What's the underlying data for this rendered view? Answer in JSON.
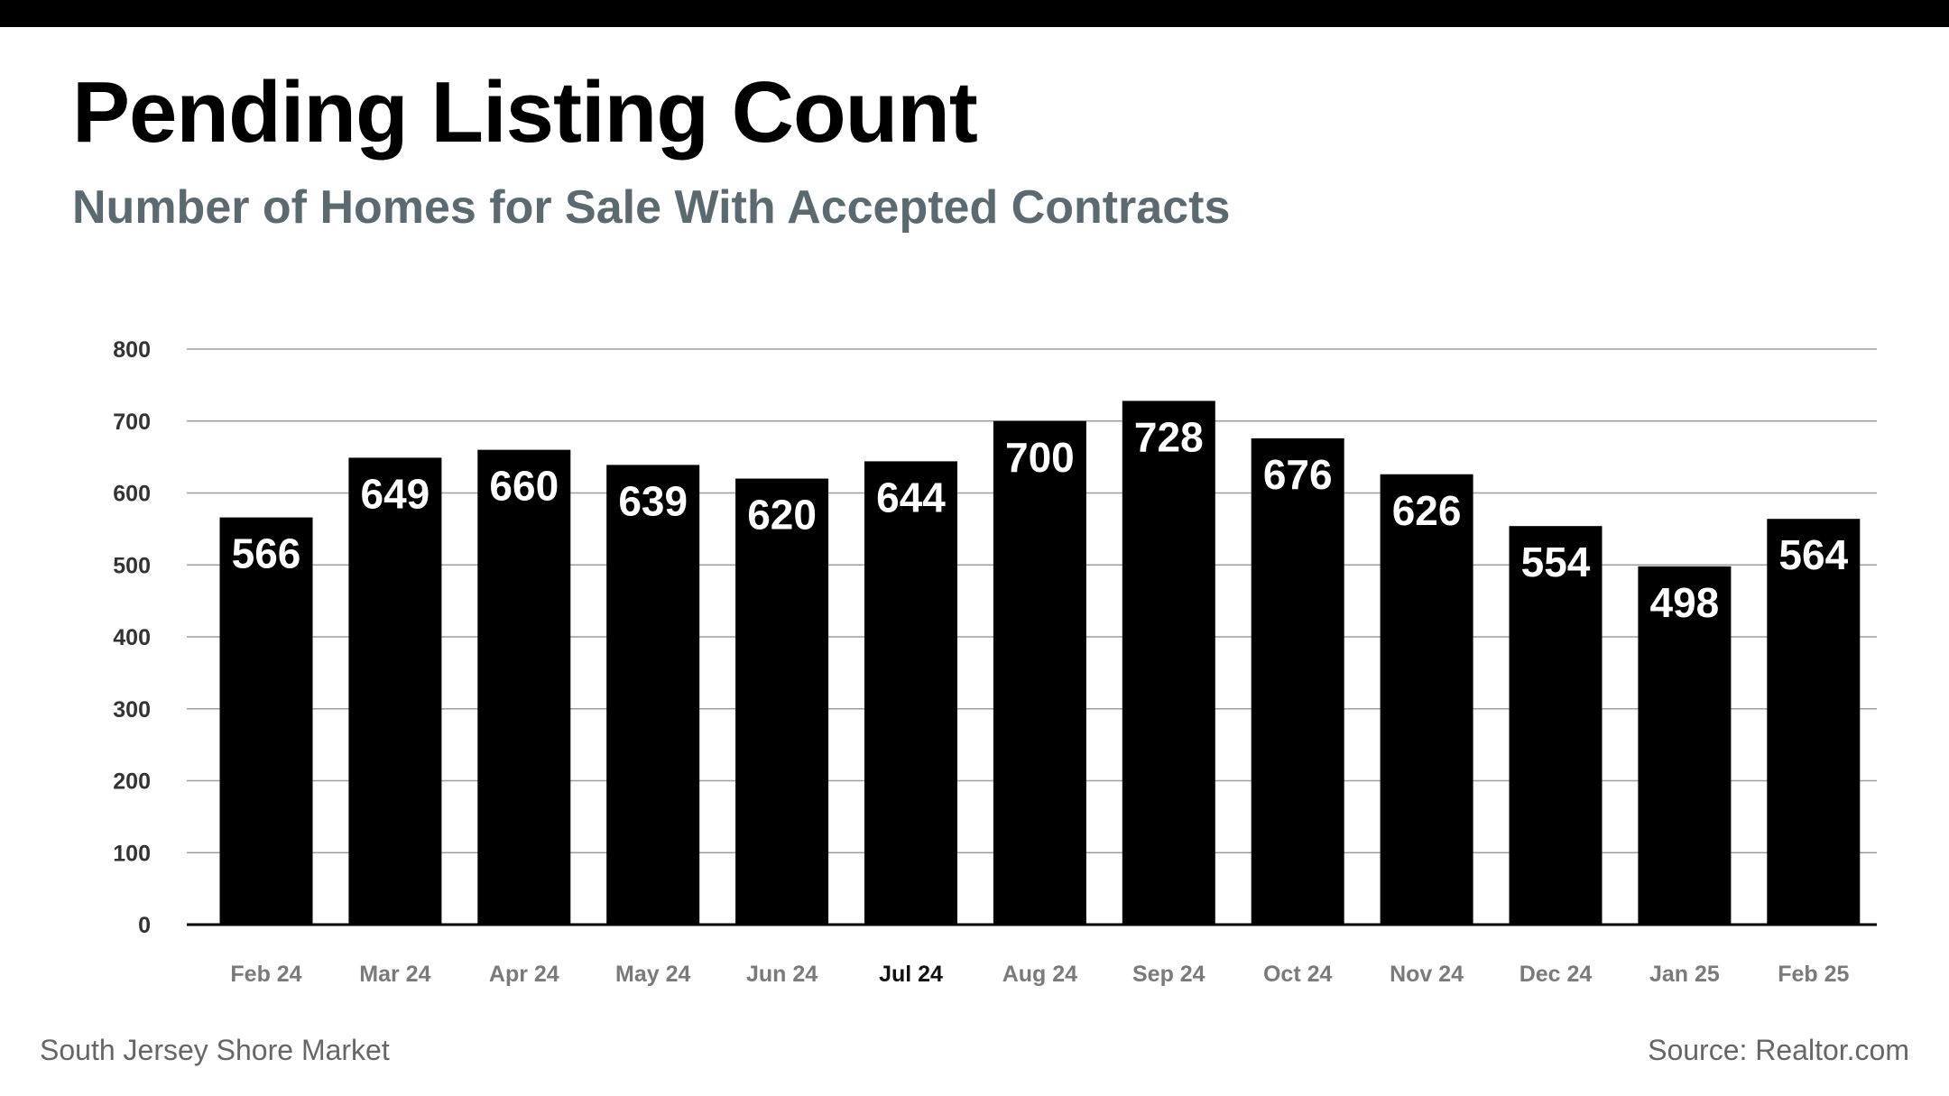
{
  "title": "Pending Listing Count",
  "subtitle": "Number of Homes for Sale With Accepted Contracts",
  "footer": {
    "left": "South Jersey Shore Market",
    "right": "Source: Realtor.com"
  },
  "colors": {
    "bar": "#000000",
    "grid": "#9e9e9e",
    "subtitle": "#5a6a70",
    "tick": "#333333",
    "category": "#7a7a7a",
    "highlight_category": "#111111"
  },
  "chart_data": {
    "type": "bar",
    "title": "Pending Listing Count",
    "subtitle": "Number of Homes for Sale With Accepted Contracts",
    "xlabel": "",
    "ylabel": "",
    "ylim": [
      0,
      800
    ],
    "yticks": [
      0,
      100,
      200,
      300,
      400,
      500,
      600,
      700,
      800
    ],
    "grid": true,
    "categories": [
      "Feb 24",
      "Mar 24",
      "Apr 24",
      "May 24",
      "Jun 24",
      "Jul 24",
      "Aug 24",
      "Sep 24",
      "Oct 24",
      "Nov 24",
      "Dec 24",
      "Jan 25",
      "Feb 25"
    ],
    "values": [
      566,
      649,
      660,
      639,
      620,
      644,
      700,
      728,
      676,
      626,
      554,
      498,
      564
    ],
    "highlight_category": "Jul 24"
  }
}
